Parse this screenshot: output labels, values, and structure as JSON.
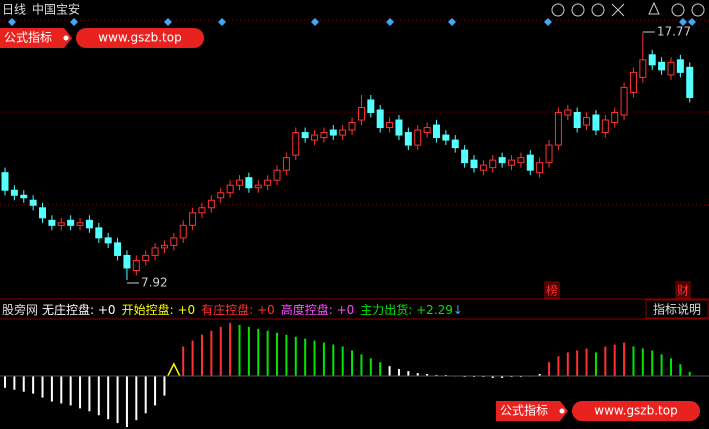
{
  "header": {
    "period": "日线",
    "stock": "中国宝安"
  },
  "chart_data": [
    {
      "type": "candlestick",
      "open": [
        12.2,
        11.5,
        11.3,
        11.1,
        10.8,
        10.3,
        10.1,
        10.3,
        10.1,
        10.3,
        10.0,
        9.6,
        9.4,
        8.9,
        8.3,
        8.7,
        8.9,
        9.2,
        9.3,
        9.6,
        10.1,
        10.6,
        10.8,
        11.2,
        11.4,
        11.7,
        12.0,
        11.6,
        11.7,
        11.9,
        12.3,
        12.9,
        13.8,
        13.5,
        13.6,
        13.9,
        13.7,
        13.9,
        14.3,
        15.1,
        14.7,
        14.0,
        14.3,
        13.8,
        13.3,
        13.8,
        14.1,
        13.7,
        13.5,
        13.1,
        12.7,
        12.3,
        12.4,
        12.8,
        12.5,
        12.6,
        12.9,
        12.2,
        12.6,
        13.3,
        14.5,
        14.6,
        14.1,
        14.5,
        13.8,
        14.2,
        14.5,
        15.4,
        16.0,
        16.9,
        16.6,
        16.1,
        16.7,
        16.4
      ],
      "high": [
        12.4,
        11.7,
        11.5,
        11.3,
        11.0,
        10.5,
        10.4,
        10.5,
        10.4,
        10.5,
        10.2,
        9.8,
        9.6,
        9.1,
        8.9,
        9.1,
        9.4,
        9.5,
        9.8,
        10.3,
        10.8,
        11.0,
        11.3,
        11.6,
        11.9,
        12.1,
        12.2,
        11.9,
        12.1,
        12.5,
        13.0,
        14.0,
        14.0,
        13.9,
        14.0,
        14.1,
        14.1,
        14.4,
        15.3,
        15.3,
        14.9,
        14.4,
        14.5,
        14.0,
        14.1,
        14.2,
        14.3,
        13.9,
        13.7,
        13.3,
        12.9,
        12.7,
        12.9,
        13.0,
        12.9,
        13.0,
        13.1,
        12.8,
        13.5,
        14.8,
        14.9,
        14.8,
        14.6,
        14.7,
        14.5,
        14.8,
        15.8,
        16.4,
        17.77,
        17.1,
        16.8,
        16.8,
        16.9,
        16.6
      ],
      "low": [
        11.3,
        11.1,
        11.0,
        10.7,
        10.2,
        9.9,
        9.9,
        9.9,
        9.9,
        9.8,
        9.4,
        9.2,
        8.7,
        7.92,
        8.1,
        8.5,
        8.7,
        9.0,
        9.1,
        9.4,
        9.9,
        10.4,
        10.6,
        11.0,
        11.2,
        11.5,
        11.4,
        11.4,
        11.5,
        11.7,
        12.1,
        12.7,
        13.4,
        13.3,
        13.4,
        13.5,
        13.5,
        13.7,
        14.1,
        14.4,
        13.8,
        13.8,
        13.5,
        13.1,
        13.1,
        13.6,
        13.4,
        13.3,
        13.0,
        12.4,
        12.2,
        12.1,
        12.2,
        12.4,
        12.3,
        12.4,
        12.1,
        12.0,
        12.4,
        13.1,
        14.3,
        13.8,
        13.9,
        13.7,
        13.6,
        14.0,
        14.3,
        15.2,
        15.8,
        16.3,
        16.1,
        15.9,
        16.0,
        15.0
      ],
      "close": [
        11.5,
        11.3,
        11.2,
        10.9,
        10.4,
        10.1,
        10.2,
        10.1,
        10.2,
        10.0,
        9.6,
        9.4,
        8.9,
        8.4,
        8.7,
        8.9,
        9.2,
        9.3,
        9.6,
        10.1,
        10.6,
        10.8,
        11.1,
        11.4,
        11.7,
        11.9,
        11.6,
        11.7,
        11.9,
        12.3,
        12.8,
        13.8,
        13.6,
        13.7,
        13.8,
        13.7,
        13.9,
        14.2,
        14.8,
        14.6,
        14.0,
        14.2,
        13.7,
        13.3,
        13.9,
        14.0,
        13.6,
        13.5,
        13.2,
        12.6,
        12.4,
        12.5,
        12.7,
        12.6,
        12.7,
        12.8,
        12.3,
        12.6,
        13.3,
        14.6,
        14.7,
        14.0,
        14.4,
        13.9,
        14.3,
        14.6,
        15.6,
        16.2,
        16.7,
        16.5,
        16.3,
        16.6,
        16.2,
        15.2
      ],
      "up_color": "#ff3232",
      "down_color": "#54ffff",
      "annotations": [
        {
          "value": 17.77
        },
        {
          "value": 7.92
        }
      ]
    },
    {
      "type": "bar",
      "values": [
        -12,
        -14,
        -16,
        -18,
        -22,
        -26,
        -28,
        -30,
        -33,
        -36,
        -40,
        -44,
        -48,
        -52,
        -45,
        -38,
        -30,
        -20,
        0,
        30,
        36,
        42,
        46,
        50,
        54,
        52,
        50,
        48,
        46,
        44,
        42,
        40,
        38,
        36,
        34,
        32,
        30,
        26,
        22,
        18,
        14,
        10,
        7,
        5,
        3,
        2,
        1,
        1,
        0,
        -1,
        -1,
        -1,
        -2,
        -2,
        -1,
        -1,
        0,
        2,
        14,
        20,
        24,
        26,
        28,
        24,
        30,
        32,
        34,
        30,
        28,
        26,
        22,
        18,
        12,
        4
      ],
      "colors": [
        "#ffffff",
        "#ffffff",
        "#ffffff",
        "#ffffff",
        "#ffffff",
        "#ffffff",
        "#ffffff",
        "#ffffff",
        "#ffffff",
        "#ffffff",
        "#ffffff",
        "#ffffff",
        "#ffffff",
        "#ffffff",
        "#ffffff",
        "#ffffff",
        "#ffffff",
        "#ffffff",
        "#ffff00",
        "#ff3232",
        "#ff3232",
        "#ff3232",
        "#ff3232",
        "#ff3232",
        "#ff3232",
        "#00e600",
        "#00e600",
        "#00e600",
        "#00e600",
        "#00e600",
        "#00e600",
        "#00e600",
        "#00e600",
        "#00e600",
        "#00e600",
        "#00e600",
        "#00e600",
        "#00e600",
        "#00e600",
        "#00e600",
        "#00e600",
        "#ffffff",
        "#ffffff",
        "#ffffff",
        "#ffffff",
        "#ffffff",
        "#ffffff",
        "#ffffff",
        "#ffffff",
        "#ffffff",
        "#ffffff",
        "#ffffff",
        "#ffffff",
        "#ffffff",
        "#ffffff",
        "#ffffff",
        "#ffffff",
        "#ffffff",
        "#ff3232",
        "#ff3232",
        "#ff3232",
        "#ff3232",
        "#ff3232",
        "#00e600",
        "#ff3232",
        "#ff3232",
        "#ff3232",
        "#00e600",
        "#00e600",
        "#00e600",
        "#00e600",
        "#00e600",
        "#00e600",
        "#00e600"
      ],
      "ylim": [
        -54,
        57
      ]
    }
  ],
  "markers": [
    "榜",
    "财"
  ],
  "indicator_legend": {
    "source": "股旁网",
    "items": [
      {
        "label": "无庄控盘: ",
        "value": "+0",
        "color": "#ffffff"
      },
      {
        "label": "开始控盘: ",
        "value": "+0",
        "color": "#ffff00"
      },
      {
        "label": "有庄控盘: ",
        "value": "+0",
        "color": "#ff3232"
      },
      {
        "label": "高度控盘: ",
        "value": "+0",
        "color": "#ff4dff"
      },
      {
        "label": "主力出货: ",
        "value": "+2.29",
        "color": "#00e600"
      }
    ],
    "arrow": "↓"
  },
  "button": "指标说明",
  "watermarks": [
    {
      "label": "公式指标",
      "url": "www.gszb.top"
    },
    {
      "label": "公式指标",
      "url": "www.gszb.top"
    }
  ]
}
